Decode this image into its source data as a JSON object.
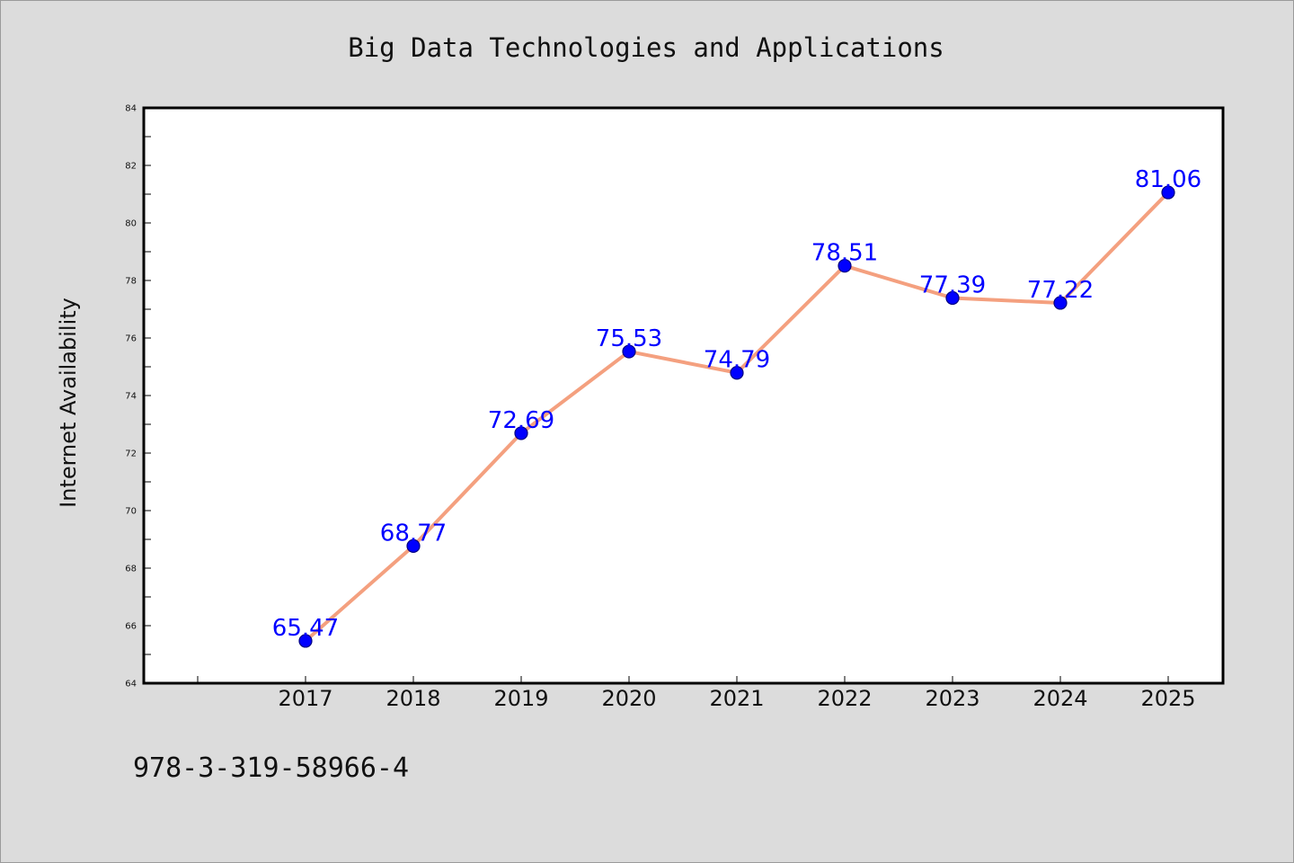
{
  "chart_data": {
    "type": "line",
    "title": "Big Data Technologies and Applications",
    "xlabel": "",
    "ylabel": "Internet Availability",
    "categories": [
      "2017",
      "2018",
      "2019",
      "2020",
      "2021",
      "2022",
      "2023",
      "2024",
      "2025"
    ],
    "series": [
      {
        "values": [
          65.47,
          68.77,
          72.69,
          75.53,
          74.79,
          78.51,
          77.39,
          77.22,
          81.06
        ]
      }
    ],
    "data_labels": [
      "65.47",
      "68.77",
      "72.69",
      "75.53",
      "74.79",
      "78.51",
      "77.39",
      "77.22",
      "81.06"
    ],
    "ylim": [
      64,
      84
    ],
    "yticks": [
      64,
      66,
      68,
      70,
      72,
      74,
      76,
      78,
      80,
      82,
      84
    ],
    "grid": false,
    "legend": "none",
    "colors": {
      "line": "#f4a07f",
      "marker_fill": "#0000ff",
      "marker_edge": "#000080",
      "data_label": "#0000ff",
      "background": "#dcdcdc",
      "plot_background": "#ffffff"
    }
  },
  "footer": {
    "isbn": "978-3-319-58966-4"
  }
}
